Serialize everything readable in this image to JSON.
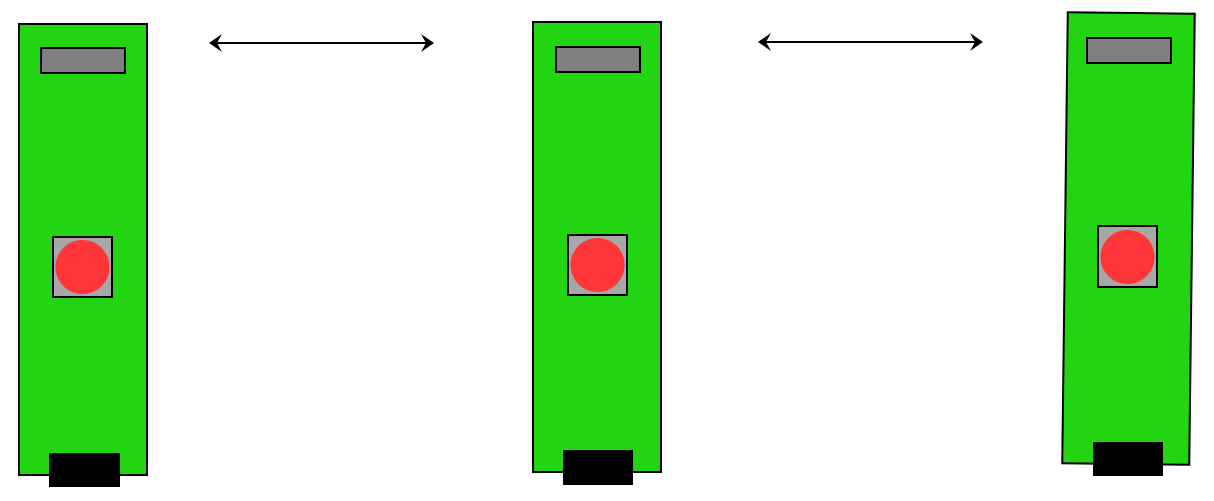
{
  "diagram": {
    "modules": [
      {
        "id": "module-1",
        "board_color": "#22d411",
        "label_color": "#808080",
        "button_pad_color": "#a7a7a7",
        "button_color": "#fe3639",
        "connector_color": "#000000"
      },
      {
        "id": "module-2",
        "board_color": "#22d411",
        "label_color": "#808080",
        "button_pad_color": "#a7a7a7",
        "button_color": "#fe3639",
        "connector_color": "#000000"
      },
      {
        "id": "module-3",
        "board_color": "#22d411",
        "label_color": "#808080",
        "button_pad_color": "#a7a7a7",
        "button_color": "#fe3639",
        "connector_color": "#000000"
      }
    ],
    "links": [
      {
        "from": "module-1",
        "to": "module-2",
        "type": "bidirectional-arrow",
        "color": "#000000"
      },
      {
        "from": "module-2",
        "to": "module-3",
        "type": "bidirectional-arrow",
        "color": "#000000"
      }
    ]
  }
}
